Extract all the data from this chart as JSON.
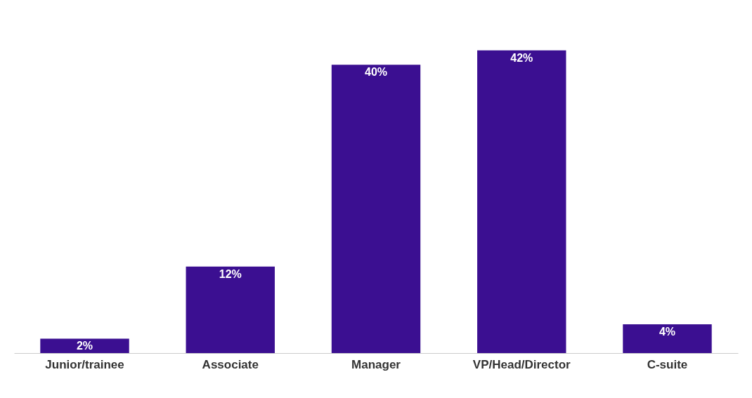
{
  "chart_data": {
    "type": "bar",
    "categories": [
      "Junior/trainee",
      "Associate",
      "Manager",
      "VP/Head/Director",
      "C-suite"
    ],
    "values": [
      2,
      12,
      40,
      42,
      4
    ],
    "value_labels": [
      "2%",
      "12%",
      "40%",
      "42%",
      "4%"
    ],
    "color": "#3b0f91"
  }
}
